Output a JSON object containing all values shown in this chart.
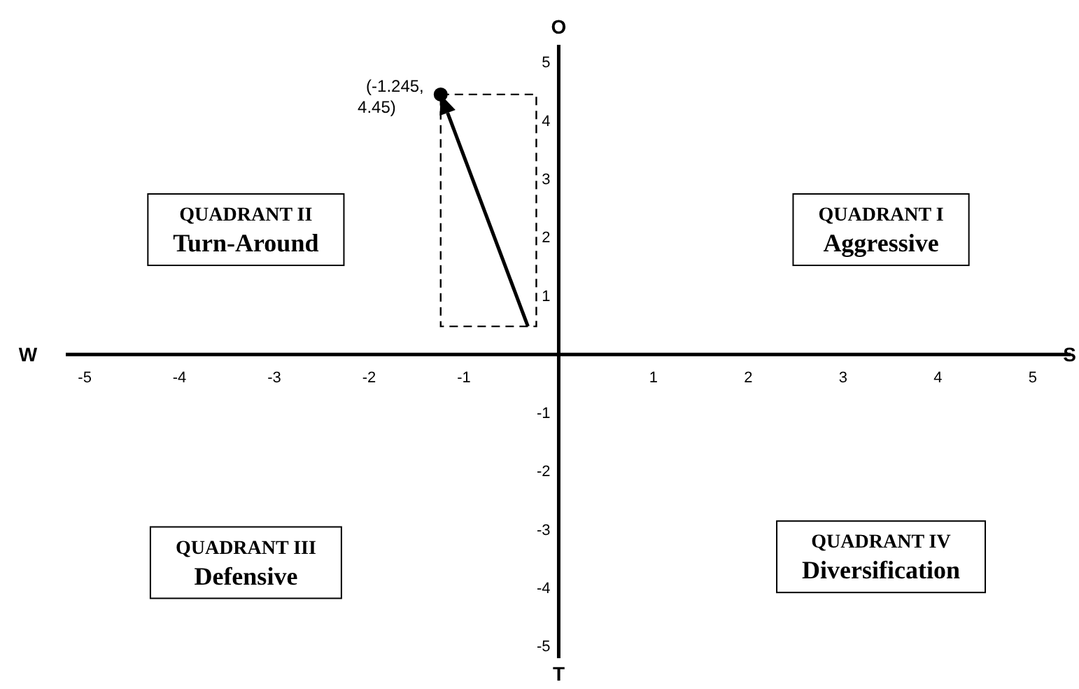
{
  "chart_data": {
    "type": "scatter",
    "xlim": [
      -5.2,
      5.4
    ],
    "ylim": [
      -5.2,
      5.3
    ],
    "xticks": [
      -5,
      -4,
      -3,
      -2,
      -1,
      1,
      2,
      3,
      4,
      5
    ],
    "yticks": [
      -5,
      -4,
      -3,
      -2,
      -1,
      1,
      2,
      3,
      4,
      5
    ],
    "grid": false,
    "series": [
      {
        "color": "#000000",
        "marker": "circle",
        "x": [
          -1.245
        ],
        "values": [
          4.45
        ],
        "value_labels": [
          "(-1.245, 4.45)"
        ]
      }
    ],
    "annotations": [
      "W",
      "S",
      "O",
      "T",
      "QUADRANT II\nTurn-Around",
      "QUADRANT I\nAggressive",
      "QUADRANT III\nDefensive",
      "QUADRANT IV\nDiversification"
    ]
  }
}
